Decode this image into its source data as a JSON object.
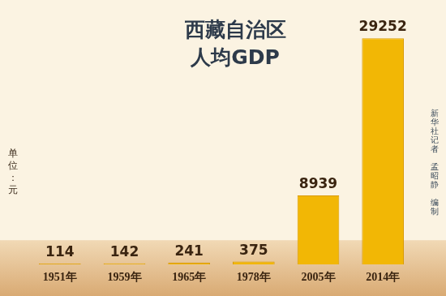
{
  "chart_data": {
    "type": "bar",
    "title": [
      "西藏自治区",
      "人均GDP"
    ],
    "y_label": "单位：元",
    "annotations": [
      "新华社记者 孟昭静 编制"
    ],
    "categories": [
      "1951年",
      "1959年",
      "1965年",
      "1978年",
      "2005年",
      "2014年"
    ],
    "values": [
      114,
      142,
      241,
      375,
      8939,
      29252
    ],
    "color": "#f2b705",
    "data_labels": true,
    "tick_labels": "x",
    "grid": false
  }
}
